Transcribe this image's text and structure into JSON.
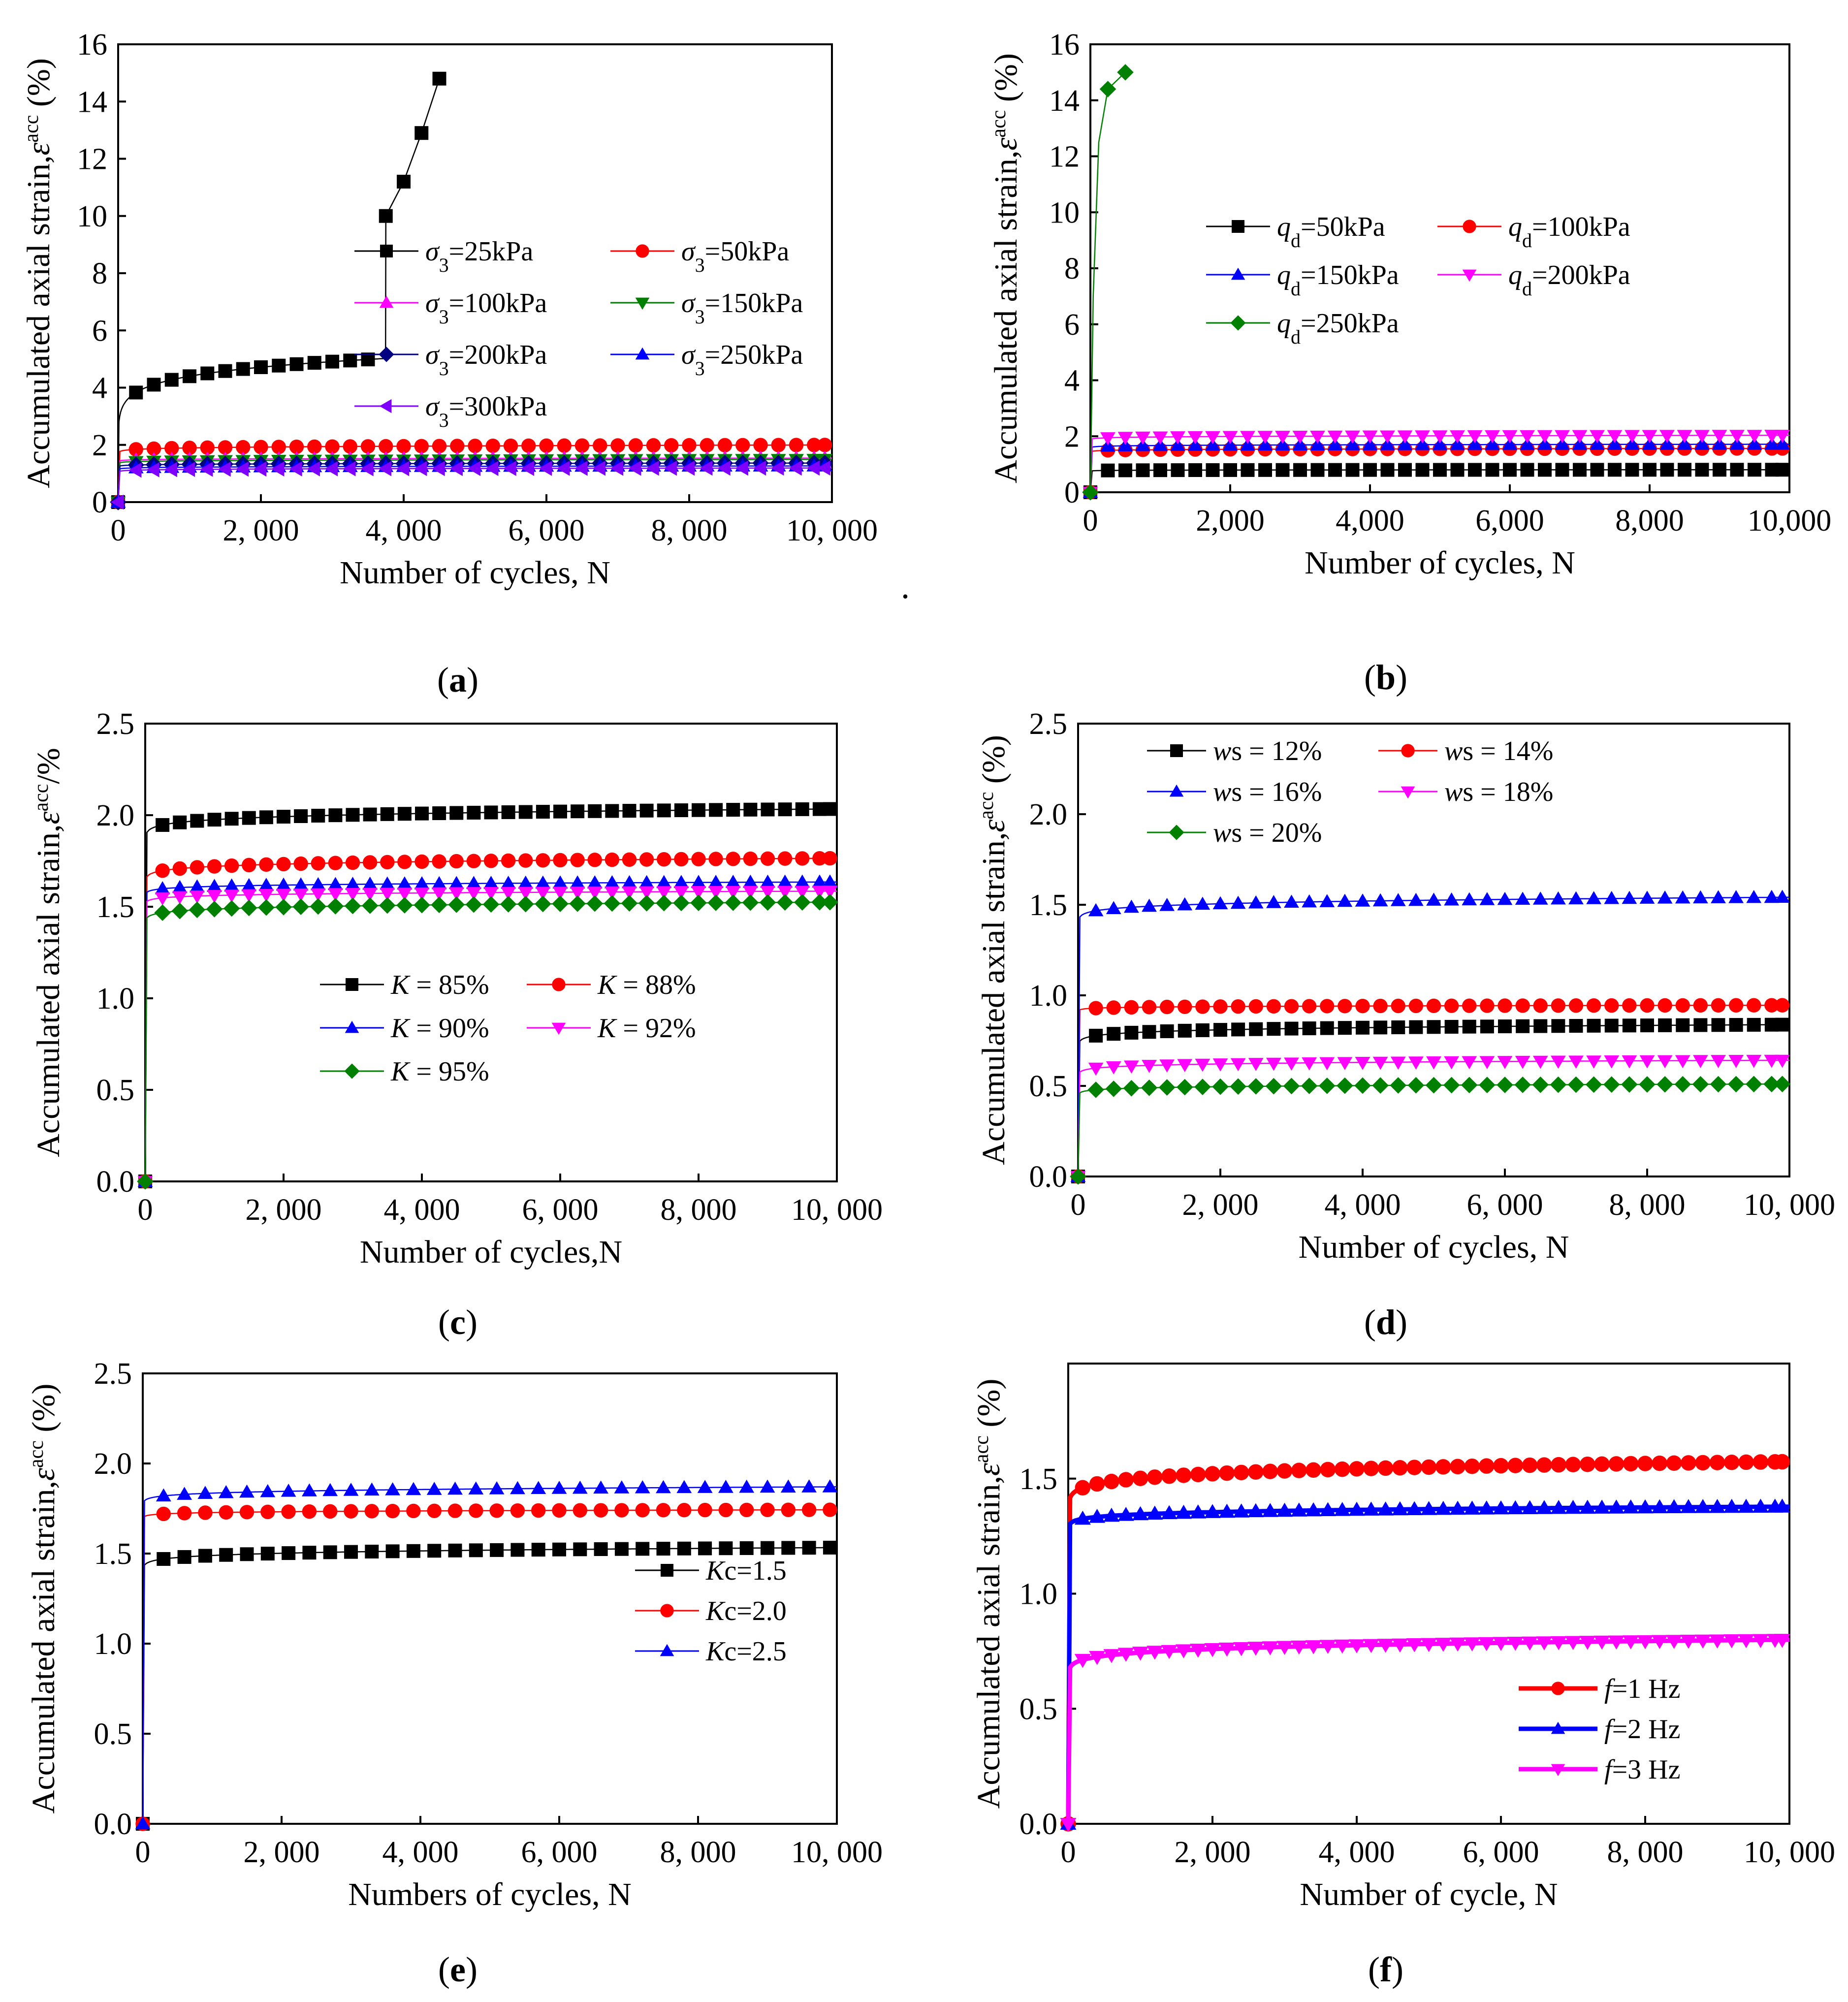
{
  "figure": {
    "stray_mark": "."
  },
  "chart_data": [
    {
      "id": "a",
      "type": "line",
      "caption_letter": "a",
      "xlabel": "Number of cycles, N",
      "ylabel_parts": [
        "Accumulated axial strain,",
        "ε",
        "acc",
        " (%)"
      ],
      "xlim": [
        0,
        10000
      ],
      "ylim": [
        0,
        16
      ],
      "xticks": [
        0,
        2000,
        4000,
        6000,
        8000,
        10000
      ],
      "xtick_labels": [
        "0",
        "2, 000",
        "4, 000",
        "6, 000",
        "8, 000",
        "10, 000"
      ],
      "yticks": [
        0,
        2,
        4,
        6,
        8,
        10,
        12,
        14,
        16
      ],
      "ytick_labels": [
        "0",
        "2",
        "4",
        "6",
        "8",
        "10",
        "12",
        "14",
        "16"
      ],
      "x_marks": [
        0,
        250,
        500,
        750,
        1000,
        1250,
        1500,
        1750,
        2000,
        2250,
        2500,
        2750,
        3000,
        3250,
        3500,
        3750,
        4000,
        4250,
        4500,
        4750,
        5000,
        5250,
        5500,
        5750,
        6000,
        6250,
        6500,
        6750,
        7000,
        7250,
        7500,
        7750,
        8000,
        8250,
        8500,
        8750,
        9000,
        9250,
        9500,
        9750,
        10000
      ],
      "legend_position": "center",
      "series": [
        {
          "name": "σ3=25kPa",
          "label_main": "σ",
          "label_sub": "3",
          "label_rest": "=25kPa",
          "color": "#000000",
          "marker": "square",
          "model": [
            0,
            3.9,
            0.1
          ],
          "x_max": 4500,
          "fail_points": [
            [
              3750,
              10.0
            ],
            [
              4000,
              11.2
            ],
            [
              4250,
              12.9
            ],
            [
              4500,
              14.8
            ]
          ]
        },
        {
          "name": "σ3=50kPa",
          "label_main": "σ",
          "label_sub": "3",
          "label_rest": "=50kPa",
          "color": "#ff0000",
          "marker": "circle",
          "model": [
            1.5,
            1.85,
            0.1
          ]
        },
        {
          "name": "σ3=100kPa",
          "label_main": "σ",
          "label_sub": "3",
          "label_rest": "=100kPa",
          "color": "#ff00ff",
          "marker": "triangle-up",
          "model": [
            1.3,
            1.48,
            0.08
          ]
        },
        {
          "name": "σ3=150kPa",
          "label_main": "σ",
          "label_sub": "3",
          "label_rest": "=150kPa",
          "color": "#008000",
          "marker": "triangle-down",
          "model": [
            1.2,
            1.42,
            0.08
          ]
        },
        {
          "name": "σ3=200kPa",
          "label_main": "σ",
          "label_sub": "3",
          "label_rest": "=200kPa",
          "color": "#000080",
          "marker": "diamond",
          "model": [
            1.1,
            1.3,
            0.08
          ]
        },
        {
          "name": "σ3=250kPa",
          "label_main": "σ",
          "label_sub": "3",
          "label_rest": "=250kPa",
          "color": "#0000ff",
          "marker": "triangle-up",
          "model": [
            1.0,
            1.2,
            0.08
          ]
        },
        {
          "name": "σ3=300kPa",
          "label_main": "σ",
          "label_sub": "3",
          "label_rest": "=300kPa",
          "color": "#8000ff",
          "marker": "triangle-left",
          "model": [
            0.9,
            1.12,
            0.08
          ]
        }
      ]
    },
    {
      "id": "b",
      "type": "line",
      "caption_letter": "b",
      "xlabel": "Number of cycles, N",
      "ylabel_parts": [
        "Accumulated axial strain,",
        "ε",
        "acc",
        " (%)"
      ],
      "xlim": [
        0,
        10000
      ],
      "ylim": [
        0,
        16
      ],
      "xticks": [
        0,
        2000,
        4000,
        6000,
        8000,
        10000
      ],
      "xtick_labels": [
        "0",
        "2,000",
        "4,000",
        "6,000",
        "8,000",
        "10,000"
      ],
      "yticks": [
        0,
        2,
        4,
        6,
        8,
        10,
        12,
        14,
        16
      ],
      "ytick_labels": [
        "0",
        "2",
        "4",
        "6",
        "8",
        "10",
        "12",
        "14",
        "16"
      ],
      "x_marks": [
        0,
        250,
        500,
        750,
        1000,
        1250,
        1500,
        1750,
        2000,
        2250,
        2500,
        2750,
        3000,
        3250,
        3500,
        3750,
        4000,
        4250,
        4500,
        4750,
        5000,
        5250,
        5500,
        5750,
        6000,
        6250,
        6500,
        6750,
        7000,
        7250,
        7500,
        7750,
        8000,
        8250,
        8500,
        8750,
        9000,
        9250,
        9500,
        9750,
        10000
      ],
      "legend_position": "upper-center",
      "series": [
        {
          "name": "qd=50kPa",
          "label_main": "q",
          "label_sub": "d",
          "label_rest": "=50kPa",
          "color": "#000000",
          "marker": "square",
          "model": [
            0.65,
            0.78,
            0.05
          ]
        },
        {
          "name": "qd=100kPa",
          "label_main": "q",
          "label_sub": "d",
          "label_rest": "=100kPa",
          "color": "#ff0000",
          "marker": "circle",
          "model": [
            1.3,
            1.5,
            0.08
          ]
        },
        {
          "name": "qd=150kPa",
          "label_main": "q",
          "label_sub": "d",
          "label_rest": "=150kPa",
          "color": "#0000ff",
          "marker": "triangle-up",
          "model": [
            1.45,
            1.65,
            0.08
          ]
        },
        {
          "name": "qd=200kPa",
          "label_main": "q",
          "label_sub": "d",
          "label_rest": "=200kPa",
          "color": "#ff00ff",
          "marker": "triangle-down",
          "model": [
            1.75,
            1.95,
            0.1
          ]
        },
        {
          "name": "qd=250kPa",
          "label_main": "q",
          "label_sub": "d",
          "label_rest": "=250kPa",
          "color": "#008000",
          "marker": "diamond",
          "model": [
            0,
            0,
            0
          ],
          "x_max": 0,
          "fail_points": [
            [
              0,
              0
            ],
            [
              250,
              14.4
            ],
            [
              500,
              15.0
            ]
          ]
        }
      ]
    },
    {
      "id": "c",
      "type": "line",
      "caption_letter": "c",
      "xlabel": "Number of cycles,N",
      "ylabel_parts": [
        "Accumulated axial strain,",
        "ε",
        "acc",
        "/%"
      ],
      "xlim": [
        0,
        10000
      ],
      "ylim": [
        0,
        2.5
      ],
      "xticks": [
        0,
        2000,
        4000,
        6000,
        8000,
        10000
      ],
      "xtick_labels": [
        "0",
        "2, 000",
        "4, 000",
        "6, 000",
        "8, 000",
        "10, 000"
      ],
      "yticks": [
        0,
        0.5,
        1.0,
        1.5,
        2.0,
        2.5
      ],
      "ytick_labels": [
        "0.0",
        "0.5",
        "1.0",
        "1.5",
        "2.0",
        "2.5"
      ],
      "x_marks": [
        0,
        250,
        500,
        750,
        1000,
        1250,
        1500,
        1750,
        2000,
        2250,
        2500,
        2750,
        3000,
        3250,
        3500,
        3750,
        4000,
        4250,
        4500,
        4750,
        5000,
        5250,
        5500,
        5750,
        6000,
        6250,
        6500,
        6750,
        7000,
        7250,
        7500,
        7750,
        8000,
        8250,
        8500,
        8750,
        9000,
        9250,
        9500,
        9750,
        10000
      ],
      "legend_position": "center",
      "series": [
        {
          "name": "K = 85%",
          "label_main": "K",
          "label_sub": "",
          "label_rest": " = 85%",
          "color": "#000000",
          "marker": "square",
          "model": [
            1.75,
            1.95,
            0.1
          ]
        },
        {
          "name": "K = 88%",
          "label_main": "K",
          "label_sub": "",
          "label_rest": " = 88%",
          "color": "#ff0000",
          "marker": "circle",
          "model": [
            1.5,
            1.7,
            0.08
          ]
        },
        {
          "name": "K = 90%",
          "label_main": "K",
          "label_sub": "",
          "label_rest": " = 90%",
          "color": "#0000ff",
          "marker": "triangle-up",
          "model": [
            1.45,
            1.6,
            0.06
          ]
        },
        {
          "name": "K = 92%",
          "label_main": "K",
          "label_sub": "",
          "label_rest": " = 92%",
          "color": "#ff00ff",
          "marker": "triangle-down",
          "model": [
            1.4,
            1.55,
            0.06
          ]
        },
        {
          "name": "K = 95%",
          "label_main": "K",
          "label_sub": "",
          "label_rest": " = 95%",
          "color": "#008000",
          "marker": "diamond",
          "model": [
            1.3,
            1.47,
            0.08
          ]
        }
      ]
    },
    {
      "id": "d",
      "type": "line",
      "caption_letter": "d",
      "xlabel": "Number of cycles, N",
      "ylabel_parts": [
        "Accumulated axial strain,",
        "ε",
        "acc",
        " (%)"
      ],
      "xlim": [
        0,
        10000
      ],
      "ylim": [
        0,
        2.5
      ],
      "xticks": [
        0,
        2000,
        4000,
        6000,
        8000,
        10000
      ],
      "xtick_labels": [
        "0",
        "2, 000",
        "4, 000",
        "6, 000",
        "8, 000",
        "10, 000"
      ],
      "yticks": [
        0,
        0.5,
        1.0,
        1.5,
        2.0,
        2.5
      ],
      "ytick_labels": [
        "0.0",
        "0.5",
        "1.0",
        "1.5",
        "2.0",
        "2.5"
      ],
      "x_marks": [
        0,
        250,
        500,
        750,
        1000,
        1250,
        1500,
        1750,
        2000,
        2250,
        2500,
        2750,
        3000,
        3250,
        3500,
        3750,
        4000,
        4250,
        4500,
        4750,
        5000,
        5250,
        5500,
        5750,
        6000,
        6250,
        6500,
        6750,
        7000,
        7250,
        7500,
        7750,
        8000,
        8250,
        8500,
        8750,
        9000,
        9250,
        9500,
        9750,
        10000
      ],
      "legend_position": "top-left",
      "series": [
        {
          "name": "ws = 12%",
          "label_main": "w",
          "label_sub": "",
          "label_rest": "s = 12%",
          "color": "#000000",
          "marker": "square",
          "model": [
            0.6,
            0.78,
            0.08
          ]
        },
        {
          "name": "ws = 14%",
          "label_main": "w",
          "label_sub": "",
          "label_rest": "s = 14%",
          "color": "#ff0000",
          "marker": "circle",
          "model": [
            0.85,
            0.93,
            0.05
          ]
        },
        {
          "name": "ws = 16%",
          "label_main": "w",
          "label_sub": "",
          "label_rest": "s = 16%",
          "color": "#0000ff",
          "marker": "triangle-up",
          "model": [
            1.3,
            1.47,
            0.1
          ]
        },
        {
          "name": "ws = 18%",
          "label_main": "w",
          "label_sub": "",
          "label_rest": "s = 18%",
          "color": "#ff00ff",
          "marker": "triangle-down",
          "model": [
            0.45,
            0.6,
            0.07
          ]
        },
        {
          "name": "ws = 20%",
          "label_main": "w",
          "label_sub": "",
          "label_rest": "s = 20%",
          "color": "#008000",
          "marker": "diamond",
          "model": [
            0.35,
            0.48,
            0.06
          ]
        }
      ]
    },
    {
      "id": "e",
      "type": "line",
      "caption_letter": "e",
      "xlabel": "Numbers of cycles, N",
      "ylabel_parts": [
        "Accumulated axial strain,",
        "ε",
        "acc",
        " (%)"
      ],
      "xlim": [
        0,
        10000
      ],
      "ylim": [
        0,
        2.5
      ],
      "xticks": [
        0,
        2000,
        4000,
        6000,
        8000,
        10000
      ],
      "xtick_labels": [
        "0",
        "2, 000",
        "4, 000",
        "6, 000",
        "8, 000",
        "10, 000"
      ],
      "yticks": [
        0,
        0.5,
        1.0,
        1.5,
        2.0,
        2.5
      ],
      "ytick_labels": [
        "0.0",
        "0.5",
        "1.0",
        "1.5",
        "2.0",
        "2.5"
      ],
      "x_marks": [
        0,
        300,
        600,
        900,
        1200,
        1500,
        1800,
        2100,
        2400,
        2700,
        3000,
        3300,
        3600,
        3900,
        4200,
        4500,
        4800,
        5100,
        5400,
        5700,
        6000,
        6300,
        6600,
        6900,
        7200,
        7500,
        7800,
        8100,
        8400,
        8700,
        9000,
        9300,
        9600,
        9900
      ],
      "legend_position": "center-right",
      "series": [
        {
          "name": "Kc=1.5",
          "label_main": "K",
          "label_sub": "",
          "label_rest": "c=1.5",
          "color": "#000000",
          "marker": "square",
          "model": [
            1.3,
            1.47,
            0.09
          ]
        },
        {
          "name": "Kc=2.0",
          "label_main": "K",
          "label_sub": "",
          "label_rest": "c=2.0",
          "color": "#ff0000",
          "marker": "circle",
          "model": [
            1.6,
            1.72,
            0.05
          ]
        },
        {
          "name": "Kc=2.5",
          "label_main": "K",
          "label_sub": "",
          "label_rest": "c=2.5",
          "color": "#0000ff",
          "marker": "triangle-up",
          "model": [
            1.7,
            1.82,
            0.1
          ]
        }
      ]
    },
    {
      "id": "f",
      "type": "line",
      "caption_letter": "f",
      "xlabel": "Number of  cycle, N",
      "ylabel_parts": [
        "Accumulated axial strain,",
        "ε",
        "acc",
        " (%)"
      ],
      "xlim": [
        0,
        10000
      ],
      "ylim": [
        0,
        2.0
      ],
      "xticks": [
        0,
        2000,
        4000,
        6000,
        8000,
        10000
      ],
      "xtick_labels": [
        "0",
        "2, 000",
        "4, 000",
        "6, 000",
        "8, 000",
        "10, 000"
      ],
      "yticks": [
        0,
        0.5,
        1.0,
        1.5
      ],
      "ytick_labels": [
        "0.0",
        "0.5",
        "1.0",
        "1.5"
      ],
      "x_marks": [
        0,
        200,
        400,
        600,
        800,
        1000,
        1200,
        1400,
        1600,
        1800,
        2000,
        2200,
        2400,
        2600,
        2800,
        3000,
        3200,
        3400,
        3600,
        3800,
        4000,
        4200,
        4400,
        4600,
        4800,
        5000,
        5200,
        5400,
        5600,
        5800,
        6000,
        6200,
        6400,
        6600,
        6800,
        7000,
        7200,
        7400,
        7600,
        7800,
        8000,
        8200,
        8400,
        8600,
        8800,
        9000,
        9200,
        9400,
        9600,
        9800,
        10000
      ],
      "legend_position": "bottom-right",
      "series": [
        {
          "name": "f=1 Hz",
          "label_main": "f",
          "label_sub": "",
          "label_rest": "=1 Hz",
          "color": "#ff0000",
          "marker": "circle",
          "model": [
            1.25,
            1.47,
            0.11
          ],
          "bold": true
        },
        {
          "name": "f=2 Hz",
          "label_main": "f",
          "label_sub": "",
          "label_rest": "=2 Hz",
          "color": "#0000ff",
          "marker": "triangle-up",
          "model": [
            1.2,
            1.33,
            0.09
          ],
          "bold": true
        },
        {
          "name": "f=3 Hz",
          "label_main": "f",
          "label_sub": "",
          "label_rest": "=3 Hz",
          "color": "#ff00ff",
          "marker": "triangle-down",
          "model": [
            0.55,
            0.72,
            0.11
          ],
          "bold": true
        }
      ]
    }
  ]
}
